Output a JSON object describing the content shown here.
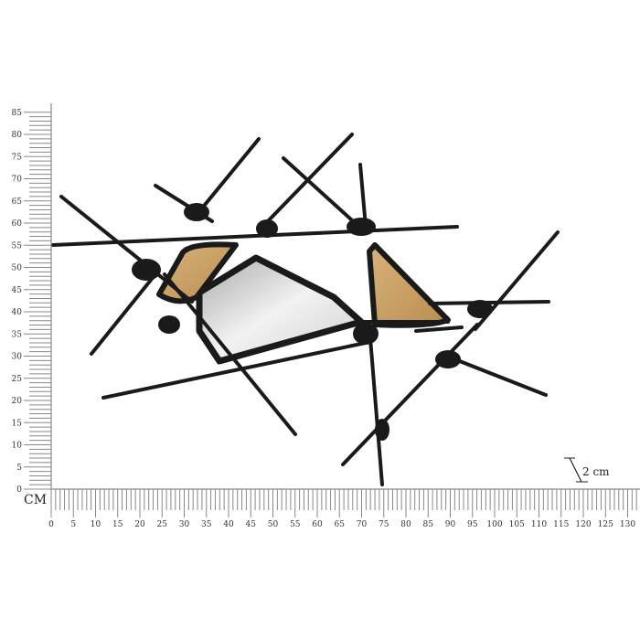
{
  "unit_label": "CM",
  "scale_note": "2 cm",
  "vertical_ruler": {
    "min": 0,
    "max": 85,
    "step": 5,
    "labels": [
      "0",
      "5",
      "10",
      "15",
      "20",
      "25",
      "30",
      "35",
      "40",
      "45",
      "50",
      "55",
      "60",
      "65",
      "70",
      "75",
      "80",
      "85"
    ]
  },
  "horizontal_ruler": {
    "min": 0,
    "max": 130,
    "step": 5,
    "labels": [
      "0",
      "5",
      "10",
      "15",
      "20",
      "25",
      "30",
      "35",
      "40",
      "45",
      "50",
      "55",
      "60",
      "65",
      "70",
      "75",
      "80",
      "85",
      "90",
      "95",
      "100",
      "105",
      "110",
      "115",
      "120",
      "125",
      "130"
    ]
  },
  "colors": {
    "metal": "#1a1a1a",
    "wood": "#c9a26a",
    "mirror": "#d8d8d8",
    "ruler": "#888888"
  }
}
